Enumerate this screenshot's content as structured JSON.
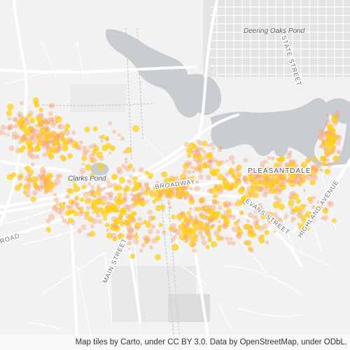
{
  "map": {
    "labels": {
      "water_deering_oaks_pond": "Deering Oaks Pond",
      "water_clarks_pond": "Clarks Pond",
      "street_state": "STATE STREET",
      "street_broadway": "BROADWAY",
      "street_main": "MAIN STREET",
      "street_evans": "EVANS STREET",
      "street_highland": "HIGHLAND AVENUE",
      "street_road": "ROAD",
      "place_pleasantdale": "PLEASANTDALE"
    },
    "attribution": "Map tiles by Carto, under CC BY 3.0. Data by OpenStreetMap, under ODbL.",
    "colors": {
      "land": "#f2f2f2",
      "water": "#c9ccd0",
      "road_major": "#ffffff",
      "road_minor": "#ffffff",
      "heat_low": "#f8a77b",
      "heat_high": "#ffcf1a"
    }
  }
}
